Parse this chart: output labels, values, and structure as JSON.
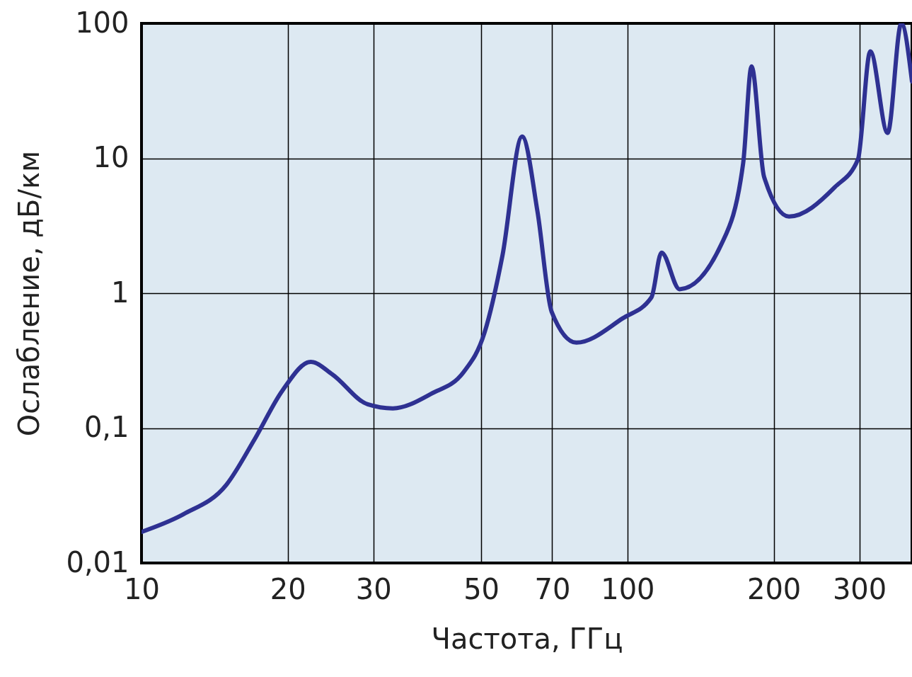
{
  "chart_data": {
    "type": "line",
    "xlabel": "Частота, ГГц",
    "ylabel": "Ослабление, дБ/км",
    "log": "xy",
    "grid": true,
    "marker": "none",
    "line_style": "solid",
    "xlim": [
      10,
      385
    ],
    "xticks": [
      10,
      20,
      30,
      50,
      70,
      100,
      200,
      300
    ],
    "ylim": [
      0.01,
      100
    ],
    "yticks": [
      {
        "value": 0.01,
        "label": "0,01"
      },
      {
        "value": 0.1,
        "label": "0,1"
      },
      1,
      10,
      100
    ],
    "x": [
      10,
      12.2,
      14.95,
      17.1,
      19.5,
      22.3,
      24.7,
      29.2,
      32.9,
      39.5,
      46,
      50.8,
      55.3,
      60.7,
      65.3,
      69.8,
      78.5,
      97.7,
      112,
      117.5,
      128,
      156,
      173,
      180,
      191,
      215,
      267,
      298,
      316,
      343,
      366,
      385
    ],
    "series": [
      {
        "color": "#2e3192",
        "values": [
          0.017,
          0.023,
          0.038,
          0.083,
          0.19,
          0.31,
          0.25,
          0.15,
          0.14,
          0.18,
          0.26,
          0.51,
          1.9,
          14.5,
          4.0,
          0.73,
          0.43,
          0.65,
          0.93,
          2.0,
          1.07,
          2.3,
          9.2,
          48,
          7.3,
          3.7,
          6.1,
          9.8,
          62,
          15.4,
          100,
          37
        ]
      }
    ]
  }
}
